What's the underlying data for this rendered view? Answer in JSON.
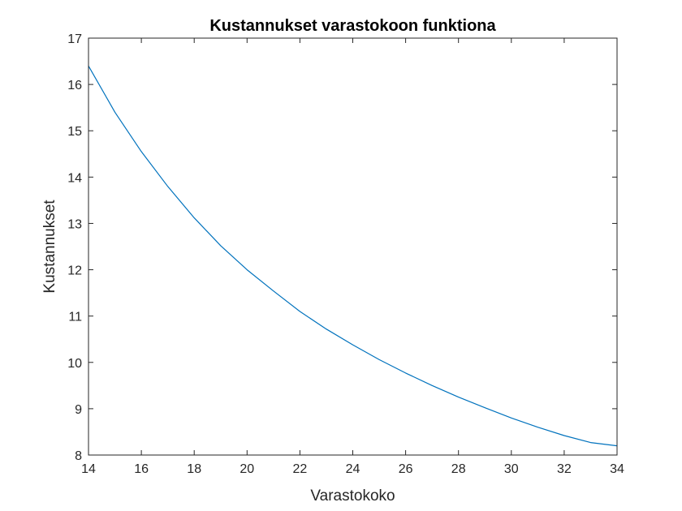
{
  "chart_data": {
    "type": "line",
    "title": "Kustannukset varastokoon funktiona",
    "xlabel": "Varastokoko",
    "ylabel": "Kustannukset",
    "xlim": [
      14,
      34
    ],
    "ylim": [
      8,
      17
    ],
    "xticks": [
      14,
      16,
      18,
      20,
      22,
      24,
      26,
      28,
      30,
      32,
      34
    ],
    "yticks": [
      8,
      9,
      10,
      11,
      12,
      13,
      14,
      15,
      16,
      17
    ],
    "grid": false,
    "series": [
      {
        "color": "#0072BD",
        "x": [
          14,
          15,
          16,
          17,
          18,
          19,
          20,
          21,
          22,
          23,
          24,
          25,
          26,
          27,
          28,
          29,
          30,
          31,
          32,
          33,
          34
        ],
        "y": [
          16.4,
          15.4,
          14.55,
          13.8,
          13.12,
          12.52,
          12.0,
          11.54,
          11.1,
          10.72,
          10.38,
          10.06,
          9.77,
          9.5,
          9.25,
          9.02,
          8.8,
          8.6,
          8.42,
          8.27,
          8.2
        ]
      }
    ]
  }
}
